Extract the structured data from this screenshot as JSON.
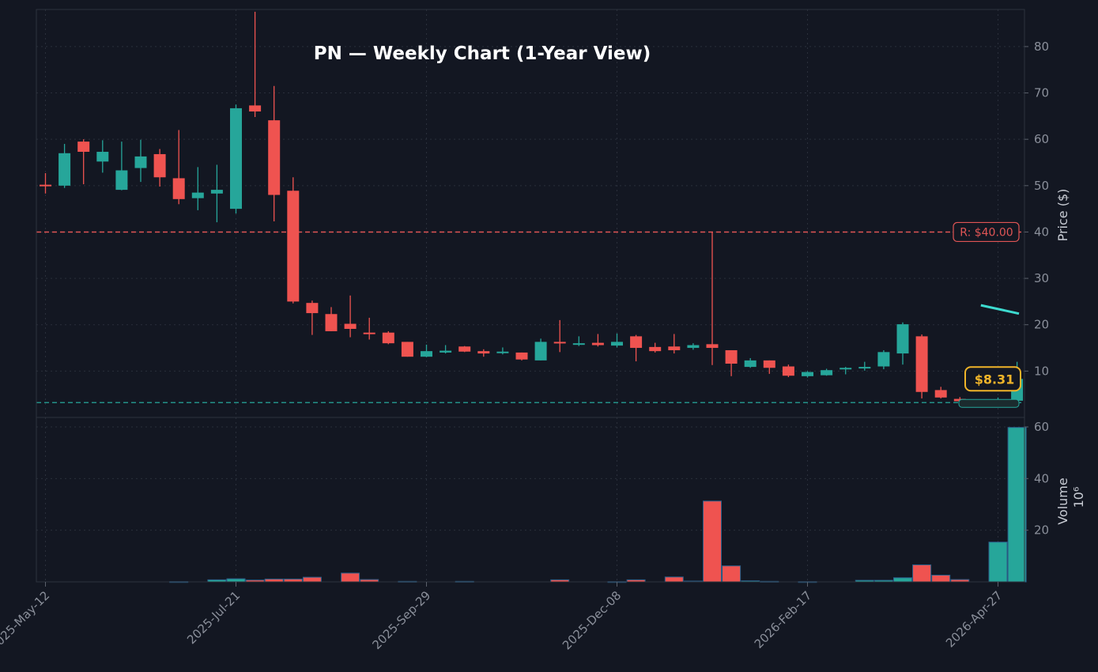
{
  "chart_data": {
    "type": "candlestick",
    "title": "PN — Weekly Chart (1-Year View)",
    "price_axis": {
      "label": "Price ($)",
      "ylim": [
        0,
        88
      ],
      "ticks": [
        10,
        20,
        30,
        40,
        50,
        60,
        70,
        80
      ],
      "grid": true
    },
    "volume_axis": {
      "label": "Volume",
      "unit_label": "10⁶",
      "ylim": [
        0,
        60
      ],
      "ticks": [
        20,
        40,
        60
      ],
      "grid": true
    },
    "x_ticks": [
      "2025-May-12",
      "2025-Jul-21",
      "2025-Sep-29",
      "2025-Dec-08",
      "2026-Feb-17",
      "2026-Apr-27"
    ],
    "colors": {
      "up": "#26a69a",
      "down": "#ef5350",
      "resistance": "#e05555",
      "support": "#26a69a",
      "last_price": "#f0b429",
      "trend": "#3ddbd0"
    },
    "resistance": {
      "value": 40.0,
      "label": "R: $40.00"
    },
    "support": {
      "value": 3.2
    },
    "last_price": {
      "value": 8.31,
      "label": "$8.31"
    },
    "trend_line": [
      {
        "x": 49.1,
        "y": 24.2
      },
      {
        "x": 51.1,
        "y": 22.4
      }
    ],
    "candles": [
      {
        "date": "2025-May-12",
        "open": 50.2,
        "high": 52.7,
        "low": 48.3,
        "close": 50.0,
        "volume": 0
      },
      {
        "date": "2025-May-19",
        "open": 50.0,
        "high": 59.0,
        "low": 49.5,
        "close": 57.0,
        "volume": 0
      },
      {
        "date": "2025-May-26",
        "open": 59.5,
        "high": 60.0,
        "low": 50.3,
        "close": 57.3,
        "volume": 0
      },
      {
        "date": "2025-Jun-02",
        "open": 55.2,
        "high": 59.8,
        "low": 52.8,
        "close": 57.3,
        "volume": 0
      },
      {
        "date": "2025-Jun-09",
        "open": 49.1,
        "high": 59.5,
        "low": 49.0,
        "close": 53.3,
        "volume": 0
      },
      {
        "date": "2025-Jun-16",
        "open": 53.8,
        "high": 59.9,
        "low": 50.8,
        "close": 56.3,
        "volume": 0
      },
      {
        "date": "2025-Jun-23",
        "open": 56.8,
        "high": 57.9,
        "low": 49.8,
        "close": 51.8,
        "volume": 0
      },
      {
        "date": "2025-Jun-30",
        "open": 51.6,
        "high": 62.0,
        "low": 46.0,
        "close": 47.1,
        "volume": 0.1
      },
      {
        "date": "2025-Jul-07",
        "open": 47.3,
        "high": 54.0,
        "low": 44.7,
        "close": 48.5,
        "volume": 0
      },
      {
        "date": "2025-Jul-14",
        "open": 48.3,
        "high": 54.5,
        "low": 42.1,
        "close": 49.1,
        "volume": 0.8
      },
      {
        "date": "2025-Jul-21",
        "open": 45.0,
        "high": 67.5,
        "low": 44.0,
        "close": 66.7,
        "volume": 1.2
      },
      {
        "date": "2025-Jul-28",
        "open": 67.3,
        "high": 87.5,
        "low": 64.8,
        "close": 66.0,
        "volume": 0.7
      },
      {
        "date": "2025-Aug-04",
        "open": 64.1,
        "high": 71.5,
        "low": 42.3,
        "close": 48.0,
        "volume": 1.1
      },
      {
        "date": "2025-Aug-11",
        "open": 48.9,
        "high": 51.8,
        "low": 24.6,
        "close": 25.0,
        "volume": 1.1
      },
      {
        "date": "2025-Aug-18",
        "open": 24.7,
        "high": 25.2,
        "low": 17.8,
        "close": 22.5,
        "volume": 1.8
      },
      {
        "date": "2025-Aug-25",
        "open": 22.3,
        "high": 23.8,
        "low": 18.6,
        "close": 18.6,
        "volume": 0
      },
      {
        "date": "2025-Sep-01",
        "open": 20.2,
        "high": 26.3,
        "low": 17.3,
        "close": 19.1,
        "volume": 3.4
      },
      {
        "date": "2025-Sep-08",
        "open": 18.3,
        "high": 21.5,
        "low": 16.8,
        "close": 18.0,
        "volume": 0.9
      },
      {
        "date": "2025-Sep-15",
        "open": 18.3,
        "high": 18.6,
        "low": 15.8,
        "close": 16.0,
        "volume": 0
      },
      {
        "date": "2025-Sep-22",
        "open": 16.3,
        "high": 16.3,
        "low": 13.1,
        "close": 13.1,
        "volume": 0.2
      },
      {
        "date": "2025-Sep-29",
        "open": 13.1,
        "high": 15.7,
        "low": 13.0,
        "close": 14.3,
        "volume": 0
      },
      {
        "date": "2025-Oct-06",
        "open": 14.0,
        "high": 15.6,
        "low": 13.8,
        "close": 14.4,
        "volume": 0
      },
      {
        "date": "2025-Oct-13",
        "open": 15.3,
        "high": 15.4,
        "low": 14.1,
        "close": 14.2,
        "volume": 0.2
      },
      {
        "date": "2025-Oct-20",
        "open": 14.3,
        "high": 14.7,
        "low": 13.1,
        "close": 13.8,
        "volume": 0
      },
      {
        "date": "2025-Oct-27",
        "open": 14.0,
        "high": 15.1,
        "low": 13.6,
        "close": 14.2,
        "volume": 0
      },
      {
        "date": "2025-Nov-03",
        "open": 14.0,
        "high": 14.0,
        "low": 12.3,
        "close": 12.5,
        "volume": 0
      },
      {
        "date": "2025-Nov-10",
        "open": 12.3,
        "high": 17.0,
        "low": 12.3,
        "close": 16.3,
        "volume": 0
      },
      {
        "date": "2025-Nov-17",
        "open": 16.3,
        "high": 21.0,
        "low": 14.1,
        "close": 16.1,
        "volume": 0.8
      },
      {
        "date": "2025-Nov-24",
        "open": 15.8,
        "high": 17.5,
        "low": 15.4,
        "close": 16.0,
        "volume": 0
      },
      {
        "date": "2025-Dec-01",
        "open": 16.1,
        "high": 18.0,
        "low": 15.3,
        "close": 15.6,
        "volume": 0
      },
      {
        "date": "2025-Dec-08",
        "open": 15.5,
        "high": 18.1,
        "low": 15.1,
        "close": 16.3,
        "volume": 0.1
      },
      {
        "date": "2025-Dec-15",
        "open": 17.5,
        "high": 17.8,
        "low": 12.1,
        "close": 15.0,
        "volume": 0.8
      },
      {
        "date": "2025-Dec-22",
        "open": 15.2,
        "high": 16.1,
        "low": 14.0,
        "close": 14.3,
        "volume": 0
      },
      {
        "date": "2025-Dec-29",
        "open": 15.3,
        "high": 18.0,
        "low": 13.8,
        "close": 14.5,
        "volume": 1.9
      },
      {
        "date": "2026-Jan-05",
        "open": 15.0,
        "high": 16.0,
        "low": 14.6,
        "close": 15.6,
        "volume": 0.3
      },
      {
        "date": "2026-Jan-12",
        "open": 15.8,
        "high": 40.0,
        "low": 11.3,
        "close": 15.0,
        "volume": 31.3
      },
      {
        "date": "2026-Jan-19",
        "open": 14.5,
        "high": 14.5,
        "low": 8.9,
        "close": 11.6,
        "volume": 6.2
      },
      {
        "date": "2026-Jan-26",
        "open": 10.9,
        "high": 12.8,
        "low": 10.7,
        "close": 12.3,
        "volume": 0.4
      },
      {
        "date": "2026-Feb-02",
        "open": 12.3,
        "high": 12.3,
        "low": 9.4,
        "close": 10.7,
        "volume": 0.2
      },
      {
        "date": "2026-Feb-09",
        "open": 11.0,
        "high": 11.4,
        "low": 8.7,
        "close": 9.0,
        "volume": 0
      },
      {
        "date": "2026-Feb-16",
        "open": 8.9,
        "high": 10.0,
        "low": 8.6,
        "close": 9.8,
        "volume": 0.1
      },
      {
        "date": "2026-Feb-23",
        "open": 9.1,
        "high": 10.5,
        "low": 9.0,
        "close": 10.2,
        "volume": 0
      },
      {
        "date": "2026-Mar-02",
        "open": 10.4,
        "high": 10.9,
        "low": 9.3,
        "close": 10.7,
        "volume": 0
      },
      {
        "date": "2026-Mar-09",
        "open": 10.6,
        "high": 12.0,
        "low": 10.1,
        "close": 10.9,
        "volume": 0.6
      },
      {
        "date": "2026-Mar-16",
        "open": 11.0,
        "high": 14.5,
        "low": 10.4,
        "close": 14.1,
        "volume": 0.6
      },
      {
        "date": "2026-Mar-23",
        "open": 13.8,
        "high": 20.5,
        "low": 11.4,
        "close": 20.1,
        "volume": 1.6
      },
      {
        "date": "2026-Mar-30",
        "open": 17.5,
        "high": 17.9,
        "low": 4.1,
        "close": 5.5,
        "volume": 6.6
      },
      {
        "date": "2026-Apr-06",
        "open": 5.9,
        "high": 6.6,
        "low": 4.1,
        "close": 4.3,
        "volume": 2.6
      },
      {
        "date": "2026-Apr-13",
        "open": 4.0,
        "high": 4.4,
        "low": 3.4,
        "close": 3.5,
        "volume": 0.9
      },
      {
        "date": "2026-Apr-20",
        "open": 3.5,
        "high": 3.9,
        "low": 3.3,
        "close": 3.6,
        "volume": 0
      },
      {
        "date": "2026-Apr-27",
        "open": 3.5,
        "high": 4.3,
        "low": 3.3,
        "close": 3.8,
        "volume": 15.4
      },
      {
        "date": "2026-May-04",
        "open": 3.6,
        "high": 12.0,
        "low": 3.3,
        "close": 8.31,
        "volume": 59.8
      }
    ]
  }
}
